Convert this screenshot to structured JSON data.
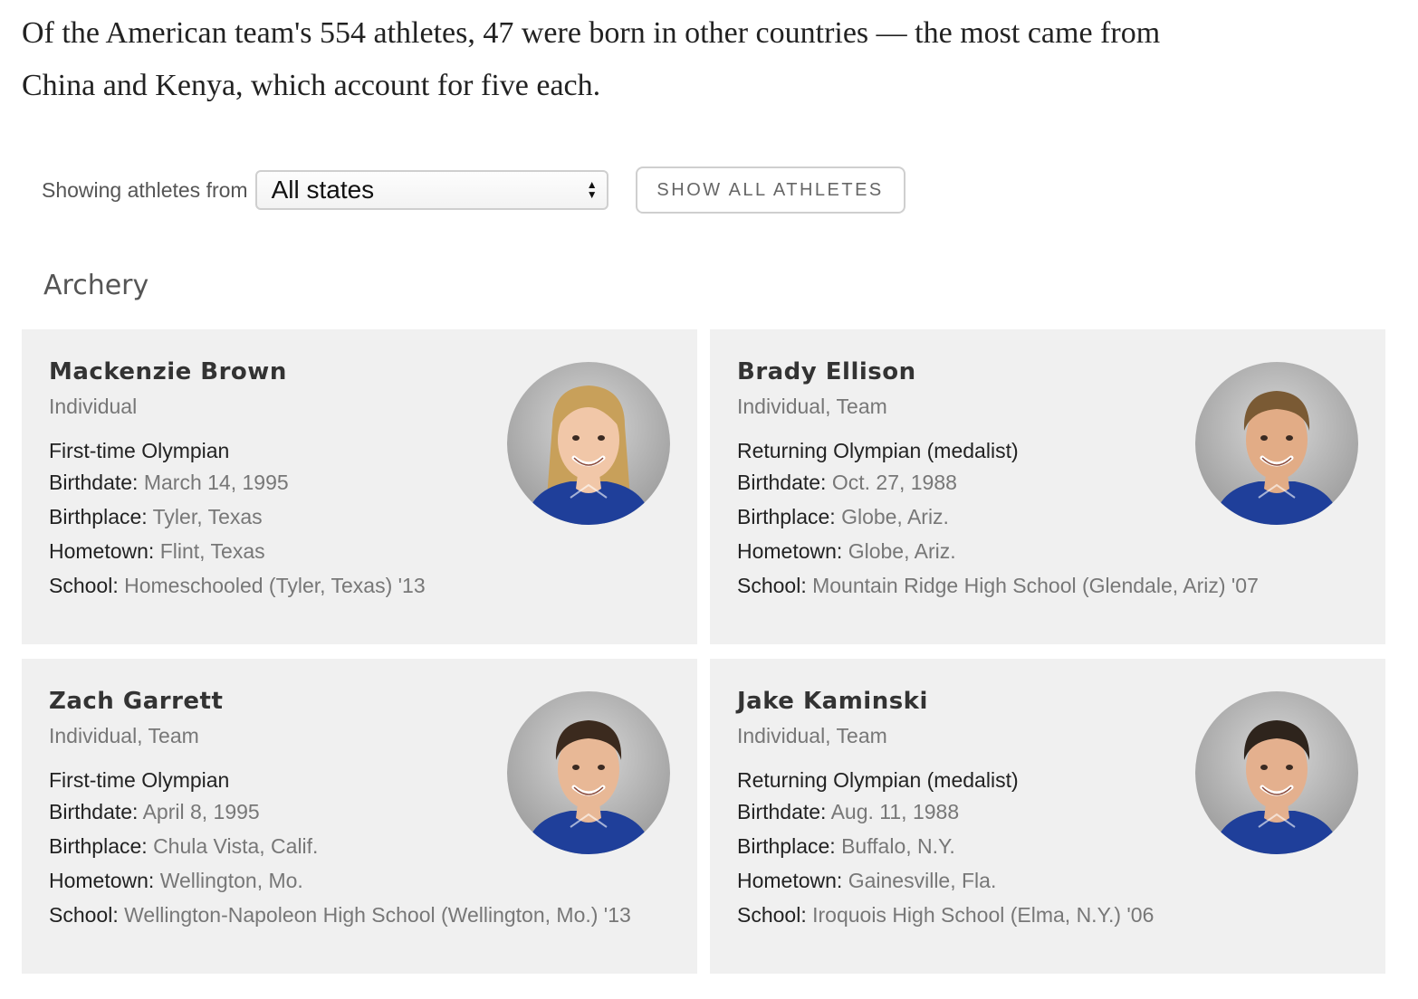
{
  "intro": "Of the American team's 554 athletes, 47 were born in other countries — the most came from China and Kenya, which account for five each.",
  "filter": {
    "label": "Showing athletes from",
    "selected": "All states",
    "show_all_label": "SHOW ALL ATHLETES"
  },
  "section": {
    "title": "Archery"
  },
  "labels": {
    "birthdate": "Birthdate:",
    "birthplace": "Birthplace:",
    "hometown": "Hometown:",
    "school": "School:"
  },
  "athletes": [
    {
      "name": "Mackenzie Brown",
      "events": "Individual",
      "status": "First-time Olympian",
      "birthdate": "March 14, 1995",
      "birthplace": "Tyler, Texas",
      "hometown": "Flint, Texas",
      "school": "Homeschooled (Tyler, Texas) '13",
      "hair": "#c8a05a",
      "skin": "#f1c7a8"
    },
    {
      "name": "Brady Ellison",
      "events": "Individual, Team",
      "status": "Returning Olympian (medalist)",
      "birthdate": "Oct. 27, 1988",
      "birthplace": "Globe, Ariz.",
      "hometown": "Globe, Ariz.",
      "school": "Mountain Ridge High School (Glendale, Ariz) '07",
      "hair": "#7a5a34",
      "skin": "#e2ac86"
    },
    {
      "name": "Zach Garrett",
      "events": "Individual, Team",
      "status": "First-time Olympian",
      "birthdate": "April 8, 1995",
      "birthplace": "Chula Vista, Calif.",
      "hometown": "Wellington, Mo.",
      "school": "Wellington-Napoleon High School (Wellington, Mo.) '13",
      "hair": "#3b2a1e",
      "skin": "#e8b896"
    },
    {
      "name": "Jake Kaminski",
      "events": "Individual, Team",
      "status": "Returning Olympian (medalist)",
      "birthdate": "Aug. 11, 1988",
      "birthplace": "Buffalo, N.Y.",
      "hometown": "Gainesville, Fla.",
      "school": "Iroquois High School (Elma, N.Y.) '06",
      "hair": "#2e241c",
      "skin": "#e4b08e"
    }
  ],
  "colors": {
    "card_bg": "#f0f0f0",
    "jersey": "#1f3f9a",
    "photo_bg": "#9a9a9a"
  }
}
